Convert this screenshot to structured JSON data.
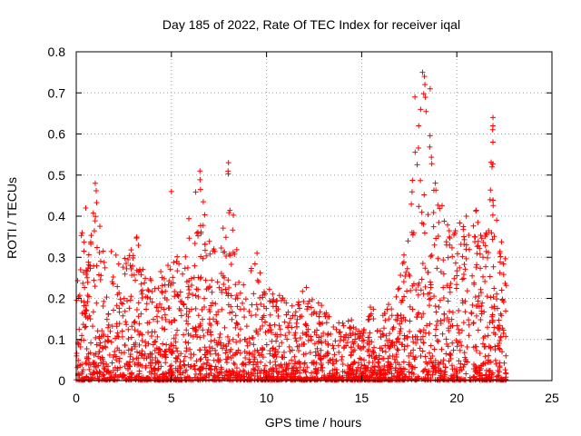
{
  "chart_data": {
    "type": "scatter",
    "title": "Day 185 of 2022, Rate Of TEC Index for receiver iqal",
    "xlabel": "GPS time / hours",
    "ylabel": "ROTI / TECUs",
    "xlim": [
      0,
      25
    ],
    "ylim": [
      0,
      0.8
    ],
    "x_ticks": [
      0,
      5,
      10,
      15,
      20,
      25
    ],
    "y_ticks": [
      0,
      0.1,
      0.2,
      0.3,
      0.4,
      0.5,
      0.6,
      0.7,
      0.8
    ],
    "x_tick_labels": [
      "0",
      "5",
      "10",
      "15",
      "20",
      "25"
    ],
    "y_tick_labels": [
      "0",
      "0.1",
      "0.2",
      "0.3",
      "0.4",
      "0.5",
      "0.6",
      "0.7",
      "0.8"
    ],
    "grid": true,
    "marker": "+",
    "marker_color": "#ff0000",
    "data_range_x": [
      0,
      22.6
    ],
    "envelope": [
      [
        0.0,
        0.22
      ],
      [
        0.3,
        0.38
      ],
      [
        0.6,
        0.3
      ],
      [
        1.0,
        0.48
      ],
      [
        1.5,
        0.3
      ],
      [
        2.0,
        0.33
      ],
      [
        2.5,
        0.3
      ],
      [
        3.0,
        0.4
      ],
      [
        3.5,
        0.28
      ],
      [
        4.0,
        0.25
      ],
      [
        4.5,
        0.27
      ],
      [
        5.0,
        0.3
      ],
      [
        5.5,
        0.36
      ],
      [
        6.0,
        0.42
      ],
      [
        6.5,
        0.52
      ],
      [
        7.0,
        0.35
      ],
      [
        7.5,
        0.3
      ],
      [
        8.0,
        0.53
      ],
      [
        8.5,
        0.3
      ],
      [
        9.0,
        0.25
      ],
      [
        9.5,
        0.31
      ],
      [
        10.0,
        0.23
      ],
      [
        10.5,
        0.22
      ],
      [
        11.0,
        0.2
      ],
      [
        11.5,
        0.18
      ],
      [
        12.0,
        0.24
      ],
      [
        12.5,
        0.2
      ],
      [
        13.0,
        0.18
      ],
      [
        13.5,
        0.15
      ],
      [
        14.0,
        0.14
      ],
      [
        14.5,
        0.15
      ],
      [
        15.0,
        0.13
      ],
      [
        15.5,
        0.2
      ],
      [
        16.0,
        0.15
      ],
      [
        16.5,
        0.2
      ],
      [
        17.0,
        0.25
      ],
      [
        17.5,
        0.48
      ],
      [
        18.0,
        0.62
      ],
      [
        18.3,
        0.75
      ],
      [
        18.7,
        0.55
      ],
      [
        19.0,
        0.45
      ],
      [
        19.5,
        0.4
      ],
      [
        20.0,
        0.38
      ],
      [
        20.5,
        0.4
      ],
      [
        21.0,
        0.42
      ],
      [
        21.5,
        0.36
      ],
      [
        21.9,
        0.64
      ],
      [
        22.2,
        0.38
      ],
      [
        22.6,
        0.3
      ]
    ],
    "outliers": [
      {
        "x": 1.0,
        "y": 0.48
      },
      {
        "x": 0.5,
        "y": 0.42
      },
      {
        "x": 5.0,
        "y": 0.46
      },
      {
        "x": 6.5,
        "y": 0.51
      },
      {
        "x": 8.0,
        "y": 0.53
      },
      {
        "x": 18.2,
        "y": 0.75
      },
      {
        "x": 18.3,
        "y": 0.74
      },
      {
        "x": 18.6,
        "y": 0.71
      },
      {
        "x": 17.8,
        "y": 0.69
      },
      {
        "x": 18.1,
        "y": 0.66
      },
      {
        "x": 21.9,
        "y": 0.64
      },
      {
        "x": 21.9,
        "y": 0.62
      },
      {
        "x": 21.9,
        "y": 0.58
      },
      {
        "x": 21.85,
        "y": 0.52
      },
      {
        "x": 18.0,
        "y": 0.62
      },
      {
        "x": 9.5,
        "y": 0.31
      },
      {
        "x": 20.5,
        "y": 0.4
      }
    ]
  }
}
